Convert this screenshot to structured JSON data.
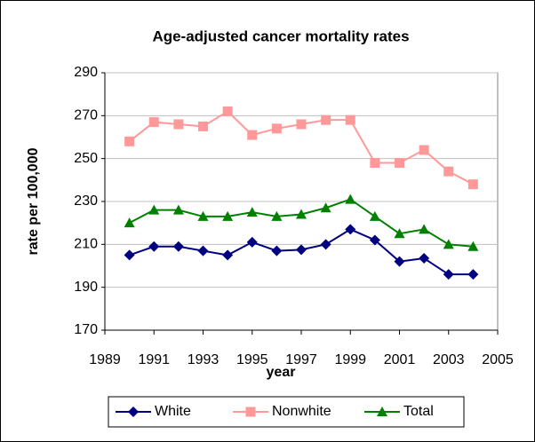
{
  "chart_data": {
    "type": "line",
    "title": "Age-adjusted cancer mortality rates",
    "x_label": "year",
    "y_label": "rate per 100,000",
    "x": [
      1990,
      1991,
      1992,
      1993,
      1994,
      1995,
      1996,
      1997,
      1998,
      1999,
      2000,
      2001,
      2002,
      2003,
      2004
    ],
    "series": [
      {
        "name": "White",
        "color": "#000080",
        "marker": "diamond",
        "values": [
          205,
          209,
          209,
          207,
          205,
          211,
          207,
          207.5,
          210,
          217,
          212,
          202,
          203.5,
          196,
          196
        ]
      },
      {
        "name": "Nonwhite",
        "color": "#ff9999",
        "marker": "square",
        "values": [
          258,
          267,
          266,
          265,
          272,
          261,
          264,
          266,
          268,
          268,
          248,
          248,
          254,
          244,
          238
        ]
      },
      {
        "name": "Total",
        "color": "#008000",
        "marker": "triangle",
        "values": [
          220,
          226,
          226,
          223,
          223,
          225,
          223,
          224,
          227,
          231,
          223,
          215,
          217,
          210,
          209
        ]
      }
    ],
    "xlim": [
      1989,
      2005
    ],
    "xticks": [
      1989,
      1991,
      1993,
      1995,
      1997,
      1999,
      2001,
      2003,
      2005
    ],
    "ylim": [
      170,
      290
    ],
    "yticks": [
      170,
      190,
      210,
      230,
      250,
      270,
      290
    ],
    "grid": true,
    "legend": "bottom"
  }
}
